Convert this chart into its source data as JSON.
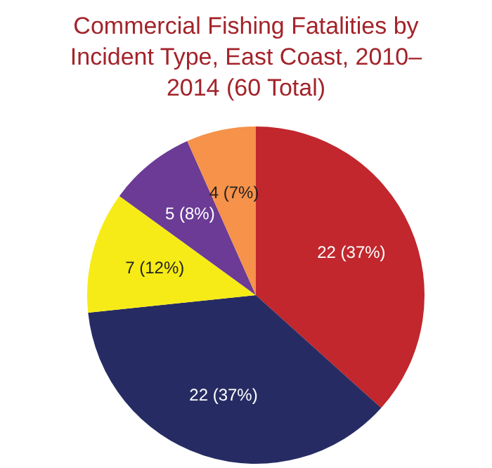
{
  "chart_data": {
    "type": "pie",
    "title": "Commercial Fishing Fatalities by Incident Type, East Coast, 2010–2014 (60 Total)",
    "categories": [
      null,
      null,
      null,
      null,
      null
    ],
    "values": [
      22,
      22,
      7,
      5,
      4
    ],
    "colors": [
      "#c1272d",
      "#262c63",
      "#f6eb16",
      "#6b3b96",
      "#f6924a"
    ],
    "value_labels": [
      "22 (37%)",
      "22 (37%)",
      "7 (12%)",
      "5 (8%)",
      "4 (7%)"
    ],
    "legend": false
  }
}
